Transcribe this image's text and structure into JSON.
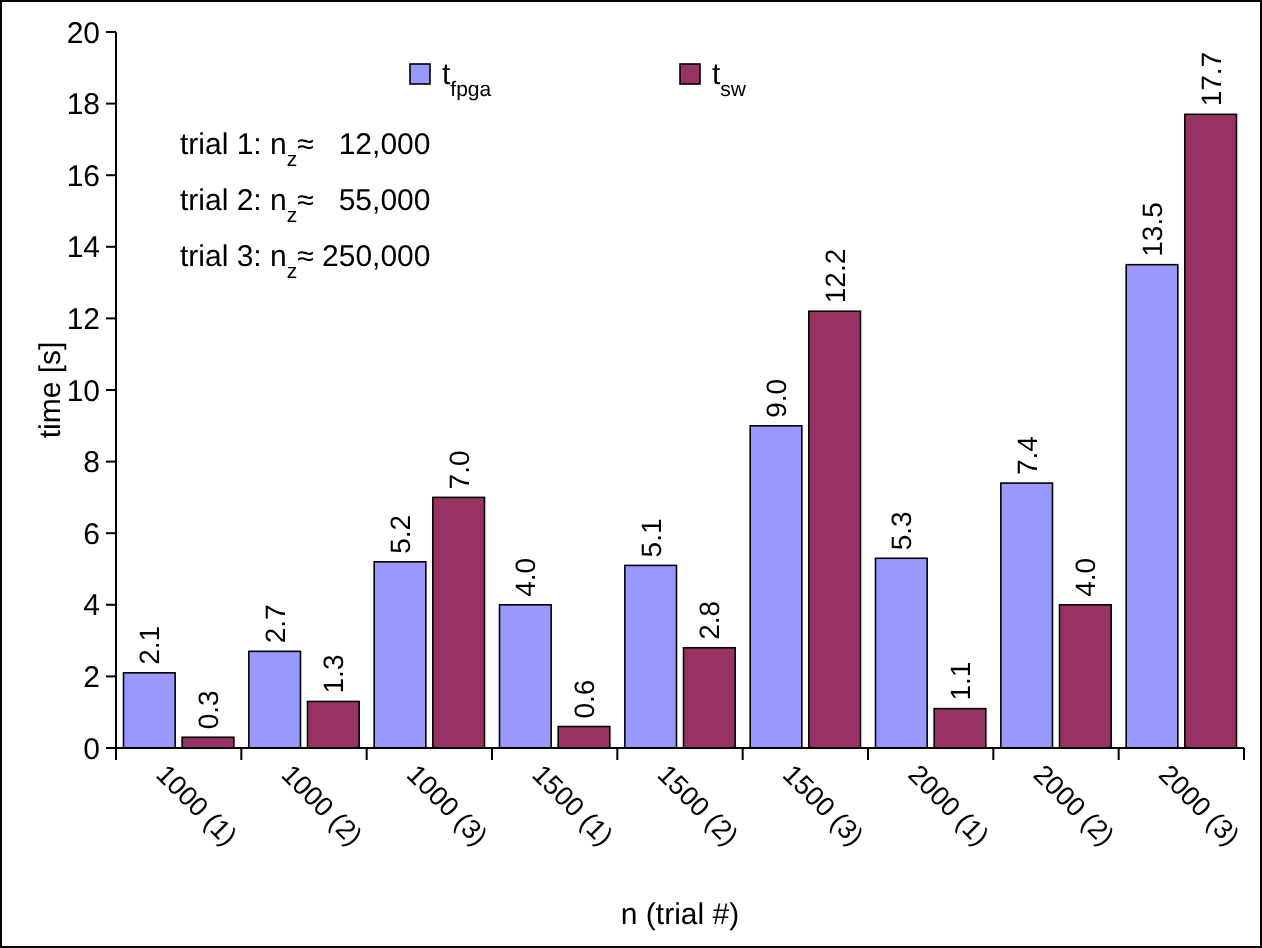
{
  "chart_data": {
    "type": "bar",
    "xlabel": "n (trial #)",
    "ylabel": "time [s]",
    "categories": [
      "1000 (1)",
      "1000 (2)",
      "1000 (3)",
      "1500 (1)",
      "1500 (2)",
      "1500 (3)",
      "2000 (1)",
      "2000 (2)",
      "2000 (3)"
    ],
    "series": [
      {
        "name": "t$_{fpga}$",
        "color": "#9999ff",
        "values": [
          2.1,
          2.7,
          5.2,
          4.0,
          5.1,
          9.0,
          5.3,
          7.4,
          13.5
        ]
      },
      {
        "name": "t$_{sw}$",
        "color": "#993366",
        "values": [
          0.3,
          1.3,
          7.0,
          0.6,
          2.8,
          12.2,
          1.1,
          4.0,
          17.7
        ]
      }
    ],
    "value_labels": [
      [
        "2.1",
        "2.7",
        "5.2",
        "4.0",
        "5.1",
        "9.0",
        "5.3",
        "7.4",
        "13.5"
      ],
      [
        "0.3",
        "1.3",
        "7.0",
        "0.6",
        "2.8",
        "12.2",
        "1.1",
        "4.0",
        "17.7"
      ]
    ],
    "ylim": [
      0,
      20
    ],
    "yticks": [
      0,
      2,
      4,
      6,
      8,
      10,
      12,
      14,
      16,
      18,
      20
    ],
    "grid": false,
    "legend": "top",
    "annotations": [
      "trial 1: n$_{z}$≈   12,000",
      "trial 2: n$_{z}$≈   55,000",
      "trial 3: n$_{z}$≈ 250,000"
    ]
  }
}
